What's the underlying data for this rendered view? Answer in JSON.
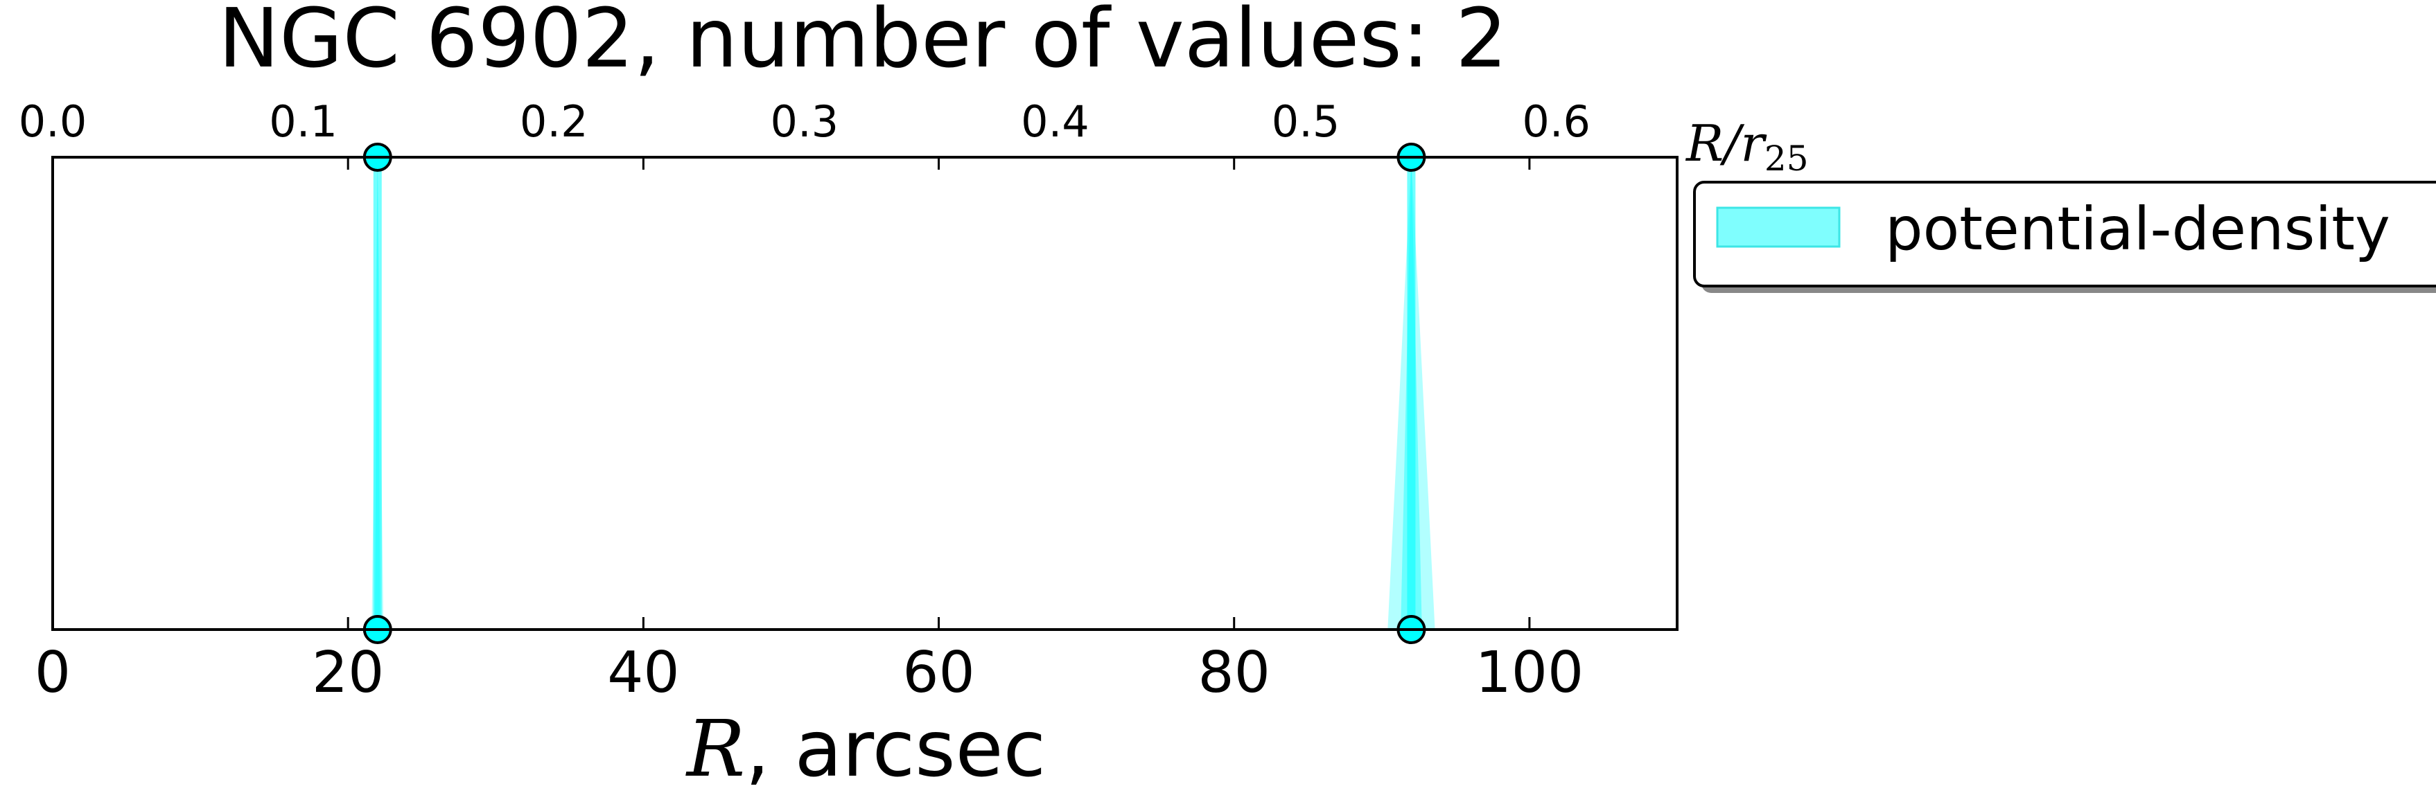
{
  "chart_data": {
    "type": "scatter",
    "title": "NGC 6902, number of values: 2",
    "xlabel": {
      "italic": "R",
      "text": ", arcsec"
    },
    "x_ticks": [
      0,
      20,
      40,
      60,
      80,
      100
    ],
    "xlim": [
      0,
      110
    ],
    "top_axis": {
      "label_main": "R/r",
      "label_sub": "25",
      "ticks": [
        "0.0",
        "0.1",
        "0.2",
        "0.3",
        "0.4",
        "0.5",
        "0.6"
      ],
      "tick_values": [
        0.0,
        0.1,
        0.2,
        0.3,
        0.4,
        0.5,
        0.6
      ],
      "r25_arcsec": 169.7
    },
    "ylabel": "",
    "y_ticks_shown": false,
    "grid": false,
    "legend": {
      "placement": "outside-right-top",
      "entries": [
        "potential-density"
      ]
    },
    "series": [
      {
        "name": "potential-density",
        "color": "#00ffff",
        "x": [
          22,
          92
        ]
      }
    ],
    "band_halfwidth": [
      0.4,
      1.6
    ]
  }
}
